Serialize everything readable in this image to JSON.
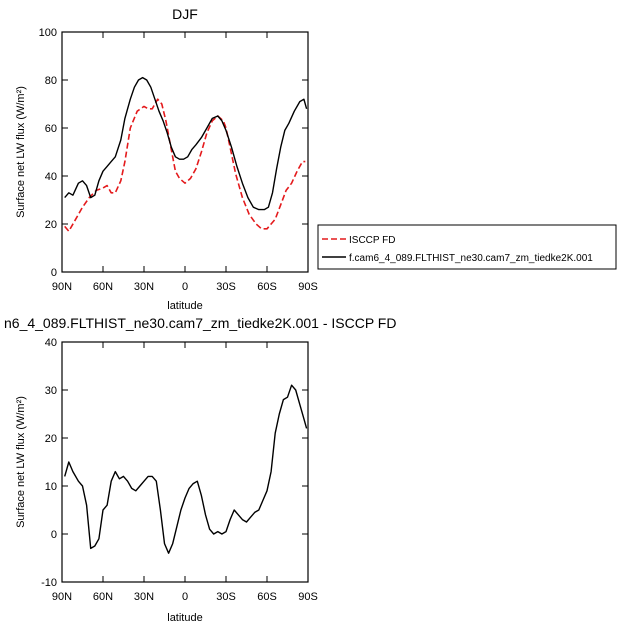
{
  "chart_data": [
    {
      "type": "line",
      "title": "DJF",
      "xlabel": "latitude",
      "ylabel": "Surface net LW flux (W/m²)",
      "xlim": [
        90,
        -90
      ],
      "ylim": [
        0,
        100
      ],
      "xticks": [
        90,
        60,
        30,
        0,
        -30,
        -60,
        -90
      ],
      "xticklabels": [
        "90N",
        "60N",
        "30N",
        "0",
        "30S",
        "60S",
        "90S"
      ],
      "yticks": [
        0,
        20,
        40,
        60,
        80,
        100
      ],
      "yticklabels": [
        "0",
        "20",
        "40",
        "60",
        "80",
        "100"
      ],
      "grid": false,
      "legend": "right",
      "series": [
        {
          "name": "ISCCP FD",
          "color": "#e41a1c",
          "dash": "dashed",
          "x": [
            88,
            85,
            80,
            75,
            70,
            65,
            60,
            57,
            54,
            51,
            47,
            44,
            40,
            35,
            30,
            27,
            24,
            20,
            17,
            14,
            10,
            7,
            4,
            0,
            -4,
            -8,
            -12,
            -16,
            -20,
            -24,
            -28,
            -30,
            -33,
            -37,
            -42,
            -47,
            -52,
            -56,
            -60,
            -63,
            -66,
            -70,
            -74,
            -78,
            -82,
            -86,
            -88
          ],
          "y": [
            19,
            17,
            22,
            27,
            31,
            34,
            35,
            36,
            33,
            33,
            38,
            46,
            60,
            67,
            69,
            68,
            68,
            72,
            70,
            63,
            51,
            42,
            39,
            37,
            39,
            43,
            50,
            58,
            63,
            65,
            63,
            60,
            52,
            41,
            31,
            24,
            20,
            18,
            18,
            20,
            22,
            28,
            34,
            37,
            42,
            46,
            46
          ]
        },
        {
          "name": "f.cam6_4_089.FLTHIST_ne30.cam7_zm_tiedke2K.001",
          "color": "#000000",
          "dash": "solid",
          "x": [
            88,
            85,
            82,
            78,
            75,
            72,
            69,
            66,
            63,
            60,
            57,
            54,
            51,
            47,
            44,
            40,
            37,
            34,
            31,
            28,
            25,
            22,
            19,
            16,
            13,
            10,
            7,
            4,
            1,
            -2,
            -5,
            -8,
            -12,
            -16,
            -20,
            -24,
            -27,
            -30,
            -34,
            -38,
            -42,
            -46,
            -50,
            -54,
            -58,
            -61,
            -64,
            -67,
            -70,
            -73,
            -76,
            -80,
            -84,
            -87,
            -89
          ],
          "y": [
            31,
            33,
            32,
            37,
            38,
            36,
            31,
            32,
            38,
            42,
            44,
            46,
            48,
            55,
            64,
            72,
            77,
            80,
            81,
            80,
            77,
            72,
            67,
            63,
            58,
            52,
            48,
            47,
            47,
            48,
            51,
            53,
            56,
            60,
            64,
            65,
            63,
            59,
            52,
            44,
            37,
            31,
            27,
            26,
            26,
            27,
            33,
            43,
            52,
            59,
            62,
            67,
            71,
            72,
            68
          ]
        }
      ]
    },
    {
      "type": "line",
      "title": "n6_4_089.FLTHIST_ne30.cam7_zm_tiedke2K.001 - ISCCP FD",
      "xlabel": "latitude",
      "ylabel": "Surface net LW flux (W/m²)",
      "xlim": [
        90,
        -90
      ],
      "ylim": [
        -10,
        40
      ],
      "xticks": [
        90,
        60,
        30,
        0,
        -30,
        -60,
        -90
      ],
      "xticklabels": [
        "90N",
        "60N",
        "30N",
        "0",
        "30S",
        "60S",
        "90S"
      ],
      "yticks": [
        -10,
        0,
        10,
        20,
        30,
        40
      ],
      "yticklabels": [
        "-10",
        "0",
        "10",
        "20",
        "30",
        "40"
      ],
      "grid": false,
      "series": [
        {
          "color": "#000000",
          "dash": "solid",
          "x": [
            88,
            85,
            82,
            78,
            75,
            72,
            69,
            66,
            63,
            60,
            57,
            54,
            51,
            48,
            45,
            42,
            39,
            36,
            33,
            30,
            27,
            24,
            21,
            18,
            15,
            12,
            9,
            6,
            3,
            0,
            -3,
            -6,
            -9,
            -12,
            -15,
            -18,
            -21,
            -24,
            -27,
            -30,
            -33,
            -36,
            -39,
            -42,
            -45,
            -48,
            -51,
            -54,
            -57,
            -60,
            -63,
            -66,
            -69,
            -72,
            -75,
            -78,
            -81,
            -84,
            -87,
            -89
          ],
          "y": [
            12,
            15,
            13,
            11,
            10,
            6,
            -3,
            -2.5,
            -1,
            5,
            6,
            11,
            13,
            11.5,
            12,
            11,
            9.5,
            9,
            10,
            11,
            12,
            12,
            11,
            5,
            -2,
            -4,
            -2,
            1.5,
            5,
            7.5,
            9.5,
            10.5,
            11,
            8,
            4,
            1,
            0,
            0.5,
            0,
            0.5,
            3,
            5,
            4,
            3,
            2.5,
            3.5,
            4.5,
            5,
            7,
            9,
            13,
            21,
            25,
            28,
            28.5,
            31,
            30,
            27,
            24,
            22
          ]
        }
      ]
    }
  ]
}
